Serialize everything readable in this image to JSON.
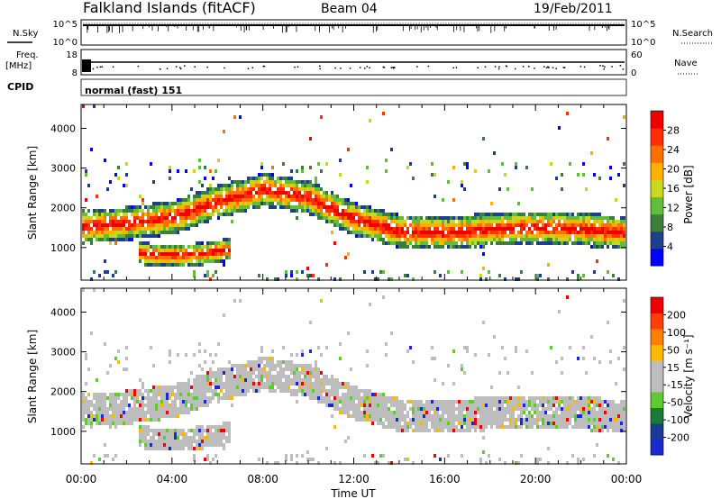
{
  "header": {
    "title": "Falkland Islands (fitACF)",
    "beam": "Beam 04",
    "date": "19/Feb/2011"
  },
  "params": {
    "nsky_label": "N.Sky",
    "nsearch_label": "N.Search",
    "freq_label": "Freq.",
    "freq_unit": "[MHz]",
    "nave_label": "Nave",
    "cpid_label": "CPID",
    "cpid_value": "normal (fast) 151",
    "noise_left_ticks": [
      "10^5",
      "10^0"
    ],
    "noise_right_ticks": [
      "10^5",
      "10^0"
    ],
    "freq_left_ticks": [
      "18",
      "8"
    ],
    "nave_right_ticks": [
      "60",
      "0"
    ]
  },
  "colors": {
    "power": [
      "#0000ff",
      "#1e3f8f",
      "#3c7f3c",
      "#5fbf3a",
      "#c8d81e",
      "#ffb000",
      "#ff7000",
      "#ff3000",
      "#ee0000"
    ],
    "velocity": [
      "#1a2ad0",
      "#1a3a9a",
      "#1a7a3a",
      "#5ecb2e",
      "#bdbdbd",
      "#bdbdbd",
      "#ffb800",
      "#ff8000",
      "#ff4000",
      "#ee0000"
    ]
  },
  "chart_data": [
    {
      "type": "heatmap",
      "panel": "power",
      "xlabel": "",
      "ylabel": "Slant Range [km]",
      "xlim": [
        0,
        24
      ],
      "ylim": [
        180,
        4600
      ],
      "y_ticks": [
        "1000",
        "2000",
        "3000",
        "4000"
      ],
      "colorbar": {
        "label": "Power [dB]",
        "ticks": [
          "28",
          "24",
          "20",
          "16",
          "12",
          "8",
          "4"
        ]
      },
      "bands": [
        {
          "name": "main",
          "x": [
            0,
            2,
            4,
            6,
            8,
            10,
            12,
            14,
            16,
            18,
            20,
            22,
            24
          ],
          "y": [
            1550,
            1650,
            1800,
            2200,
            2500,
            2300,
            1750,
            1450,
            1400,
            1500,
            1550,
            1500,
            1400
          ]
        },
        {
          "name": "low",
          "x": [
            2.5,
            3.5,
            4.5,
            5.5,
            6.5
          ],
          "y": [
            900,
            850,
            850,
            900,
            1000
          ]
        }
      ]
    },
    {
      "type": "heatmap",
      "panel": "velocity",
      "xlabel": "Time UT",
      "ylabel": "Slant Range [km]",
      "xlim": [
        0,
        24
      ],
      "ylim": [
        180,
        4600
      ],
      "x_ticks": [
        "00:00",
        "04:00",
        "08:00",
        "12:00",
        "16:00",
        "20:00",
        "00:00"
      ],
      "y_ticks": [
        "1000",
        "2000",
        "3000",
        "4000"
      ],
      "colorbar": {
        "label": "Velocity [m s⁻¹]",
        "ticks": [
          "200",
          "100",
          "50",
          "15",
          "-15",
          "-50",
          "-100",
          "-200"
        ]
      }
    }
  ]
}
